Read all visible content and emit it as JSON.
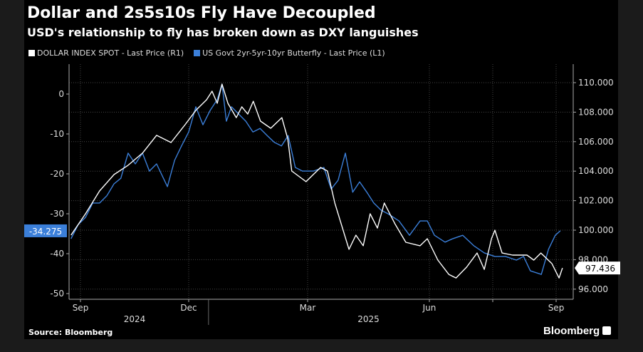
{
  "chart_data": {
    "type": "line",
    "title": "Dollar and 2s5s10s Fly Have Decoupled",
    "subtitle": "USD's relationship to fly has broken down as DXY languishes",
    "x_unit": "months since Sep 2024",
    "x_ticks": [
      {
        "label": "Sep",
        "m": 0
      },
      {
        "label": "Dec",
        "m": 3
      },
      {
        "label": "Mar",
        "m": 6
      },
      {
        "label": "Jun",
        "m": 9
      },
      {
        "label": "Sep",
        "m": 12
      }
    ],
    "x_minor_ticks": [
      10.5
    ],
    "year_labels": [
      {
        "label": "2024",
        "m": 1.5
      },
      {
        "label": "2025",
        "m": 7.5
      }
    ],
    "year_divider_m": 3.5,
    "left_axis": {
      "ticks": [
        0,
        -10,
        -20,
        -30,
        -40,
        -50
      ],
      "range": [
        -53,
        5
      ]
    },
    "right_axis": {
      "ticks": [
        96,
        98,
        100,
        102,
        104,
        106,
        108,
        110
      ],
      "labels": [
        "96.000",
        "98.000",
        "100.000",
        "102.000",
        "104.000",
        "106.000",
        "108.000",
        "110.000"
      ],
      "range": [
        95.2,
        110.8
      ]
    },
    "series": [
      {
        "name": "DOLLAR INDEX SPOT - Last Price (R1)",
        "axis": "right",
        "color": "#ffffff",
        "last_label": "97.436",
        "x": [
          -0.26,
          0.14,
          0.53,
          0.93,
          1.32,
          1.72,
          2.11,
          2.51,
          2.9,
          3.18,
          3.45,
          3.59,
          3.72,
          3.84,
          3.99,
          4.2,
          4.34,
          4.49,
          4.63,
          4.81,
          5.07,
          5.35,
          5.5,
          5.6,
          5.96,
          6.32,
          6.49,
          6.67,
          7.02,
          7.19,
          7.37,
          7.54,
          7.72,
          7.89,
          8.16,
          8.42,
          8.77,
          8.95,
          9.2,
          9.46,
          9.63,
          9.88,
          10.13,
          10.3,
          10.47,
          10.55,
          10.72,
          10.97,
          11.31,
          11.47,
          11.64,
          11.9,
          12.07,
          12.15
        ],
        "y": [
          99.66,
          101.11,
          102.66,
          103.77,
          104.4,
          105.22,
          106.43,
          105.94,
          107.15,
          108.12,
          108.84,
          109.42,
          108.6,
          109.9,
          108.6,
          107.63,
          108.36,
          107.87,
          108.74,
          107.39,
          106.91,
          107.63,
          106.18,
          104.01,
          103.29,
          104.25,
          104.01,
          101.84,
          98.7,
          99.66,
          98.94,
          101.11,
          100.14,
          101.84,
          100.39,
          99.18,
          98.94,
          99.42,
          97.97,
          97.0,
          96.76,
          97.49,
          98.45,
          97.34,
          99.42,
          100.0,
          98.45,
          98.31,
          98.31,
          97.97,
          98.45,
          97.73,
          96.76,
          97.436
        ]
      },
      {
        "name": "US Govt 2yr-5yr-10yr Butterfly - Last Price (L1)",
        "axis": "left",
        "color": "#3b7fd9",
        "last_label": "-34.275",
        "x": [
          -0.26,
          -0.06,
          0.14,
          0.34,
          0.53,
          0.73,
          0.93,
          1.12,
          1.32,
          1.52,
          1.72,
          1.91,
          2.11,
          2.41,
          2.61,
          2.8,
          3.0,
          3.18,
          3.36,
          3.54,
          3.72,
          3.84,
          3.95,
          4.08,
          4.26,
          4.44,
          4.62,
          4.8,
          4.98,
          5.16,
          5.34,
          5.51,
          5.69,
          5.87,
          6.14,
          6.4,
          6.58,
          6.75,
          6.93,
          7.11,
          7.28,
          7.46,
          7.63,
          7.81,
          7.98,
          8.25,
          8.51,
          8.77,
          8.95,
          9.12,
          9.37,
          9.54,
          9.79,
          10.05,
          10.3,
          10.55,
          10.8,
          11.06,
          11.23,
          11.39,
          11.65,
          11.82,
          11.98,
          12.1
        ],
        "y": [
          -36.25,
          -32.7,
          -30.9,
          -27.3,
          -27.3,
          -25.5,
          -22.5,
          -21.1,
          -14.8,
          -17.5,
          -14.8,
          -19.3,
          -17.5,
          -23.2,
          -16.6,
          -13.0,
          -9.5,
          -3.2,
          -7.7,
          -4.1,
          -1.4,
          2.5,
          -6.8,
          -3.2,
          -5.0,
          -6.8,
          -9.5,
          -8.6,
          -10.4,
          -12.1,
          -13.0,
          -10.4,
          -18.4,
          -19.3,
          -19.3,
          -18.4,
          -23.8,
          -21.6,
          -14.8,
          -24.6,
          -22.0,
          -24.6,
          -27.3,
          -29.1,
          -30.0,
          -31.8,
          -35.4,
          -31.8,
          -31.8,
          -35.4,
          -37.1,
          -36.3,
          -35.4,
          -38.0,
          -39.8,
          -40.7,
          -40.7,
          -41.6,
          -40.7,
          -44.3,
          -45.2,
          -38.9,
          -35.4,
          -34.275
        ]
      }
    ],
    "grid": true,
    "legend_position": "top-left"
  },
  "source": "Source: Bloomberg",
  "brand": "Bloomberg"
}
